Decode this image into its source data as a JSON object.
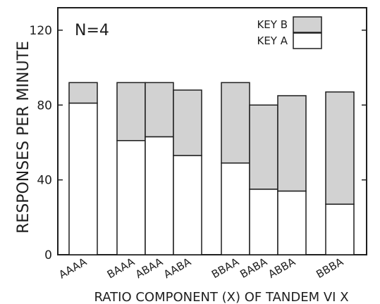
{
  "chart_data": {
    "type": "bar",
    "stacked": true,
    "annotation": "N=4",
    "xlabel": "RATIO COMPONENT (X) OF TANDEM VI X",
    "ylabel": "RESPONSES PER MINUTE",
    "ylim": [
      0,
      132
    ],
    "yticks": [
      0,
      40,
      80,
      120
    ],
    "categories": [
      "AAAA",
      "BAAA",
      "ABAA",
      "AABA",
      "BBAA",
      "BABA",
      "ABBA",
      "BBBA"
    ],
    "groups": [
      [
        0
      ],
      [
        1,
        2,
        3
      ],
      [
        4,
        5,
        6
      ],
      [
        7
      ]
    ],
    "series": [
      {
        "name": "KEY A",
        "values": [
          81,
          61,
          63,
          53,
          49,
          35,
          34,
          27
        ]
      },
      {
        "name": "KEY B",
        "values": [
          11,
          31,
          29,
          35,
          43,
          45,
          51,
          60
        ]
      }
    ],
    "legend_position": "top-right",
    "grid": false
  },
  "colors": {
    "key_a": "#ffffff",
    "key_b": "#d2d2d2",
    "ink": "#1e1e1e",
    "background": "#ffffff"
  }
}
